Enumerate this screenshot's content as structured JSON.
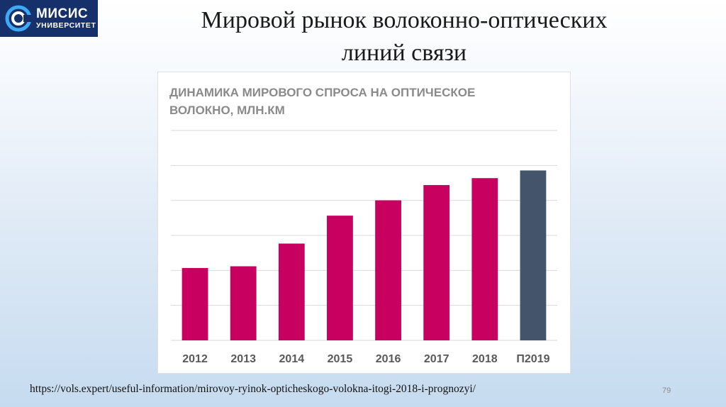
{
  "logo": {
    "name": "МИСИС",
    "subtitle": "УНИВЕРСИТЕТ"
  },
  "slide": {
    "title_line1": "Мировой рынок волоконно-оптических",
    "title_line2": "линий связи",
    "source": "https://vols.expert/useful-information/mirovoy-ryinok-opticheskogo-volokna-itogi-2018-i-prognozyi/",
    "page_number": "79"
  },
  "colors": {
    "actual_bar": "#c8005f",
    "forecast_bar": "#44546a",
    "gridline": "#dadada",
    "tick_label": "#595959"
  },
  "chart_data": {
    "type": "bar",
    "title": "Динамика мирового спроса на оптическое волокно, млн.км",
    "categories": [
      "2012",
      "2013",
      "2014",
      "2015",
      "2016",
      "2017",
      "2018",
      "П2019"
    ],
    "values": [
      293,
      300,
      392,
      505,
      567,
      629,
      657,
      688
    ],
    "forecast": [
      false,
      false,
      false,
      false,
      false,
      false,
      false,
      true
    ],
    "ylim": [
      0,
      850
    ],
    "gridlines": 6,
    "grid": true,
    "y_tick_labels_shown": false
  }
}
